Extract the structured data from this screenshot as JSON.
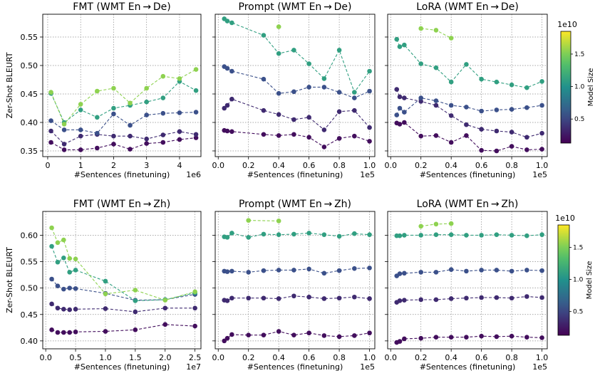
{
  "figure": {
    "colorbars": [
      {
        "label": "Model Size",
        "multiplier": "1e10",
        "ticks": [
          "0.5",
          "1.0",
          "1.5"
        ],
        "range": [
          0.13,
          1.85
        ]
      },
      {
        "label": "Model Size",
        "multiplier": "1e10",
        "ticks": [
          "0.5",
          "1.0",
          "1.5"
        ],
        "range": [
          0.13,
          1.85
        ]
      }
    ],
    "colormap_stops": [
      "#440154",
      "#3b528b",
      "#21918c",
      "#5ec962",
      "#fde725"
    ]
  },
  "chart_data": [
    {
      "type": "line",
      "title": "FMT (WMT En → De)",
      "xlabel": "#Sentences (finetuning)",
      "ylabel": "Zer-Shot BLEURT",
      "x_multiplier": "1e6",
      "xlim": [
        -0.15,
        4.65
      ],
      "ylim": [
        0.34,
        0.59
      ],
      "xticks": [
        0,
        1,
        2,
        3,
        4
      ],
      "xtick_labels": [
        "0",
        "1",
        "2",
        "3",
        "4"
      ],
      "yticks": [
        0.35,
        0.4,
        0.45,
        0.5,
        0.55
      ],
      "ytick_labels": [
        "0.35",
        "0.40",
        "0.45",
        "0.50",
        "0.55"
      ],
      "grid": true,
      "series": [
        {
          "model_size": 0.2,
          "x": [
            0.1,
            0.5,
            1.0,
            1.5,
            2.0,
            2.5,
            3.0,
            3.5,
            4.0,
            4.5
          ],
          "y": [
            0.365,
            0.352,
            0.352,
            0.355,
            0.362,
            0.353,
            0.363,
            0.365,
            0.37,
            0.373
          ]
        },
        {
          "model_size": 0.35,
          "x": [
            0.1,
            0.5,
            1.0,
            1.5,
            2.0,
            2.5,
            3.0,
            3.5,
            4.0,
            4.5
          ],
          "y": [
            0.385,
            0.362,
            0.376,
            0.379,
            0.376,
            0.376,
            0.371,
            0.378,
            0.384,
            0.379
          ]
        },
        {
          "model_size": 0.55,
          "x": [
            0.1,
            0.5,
            1.0,
            1.5,
            2.0,
            2.5,
            3.0,
            3.5,
            4.0,
            4.5
          ],
          "y": [
            0.403,
            0.387,
            0.387,
            0.381,
            0.415,
            0.395,
            0.413,
            0.416,
            0.417,
            0.418
          ]
        },
        {
          "model_size": 1.1,
          "x": [
            0.1,
            0.5,
            1.0,
            1.5,
            2.0,
            2.5,
            3.0,
            3.5,
            4.0,
            4.5
          ],
          "y": [
            0.451,
            0.4,
            0.422,
            0.409,
            0.425,
            0.43,
            0.436,
            0.443,
            0.472,
            0.456
          ]
        },
        {
          "model_size": 1.55,
          "x": [
            0.1,
            0.5,
            1.0,
            1.5,
            2.0,
            2.5,
            3.0,
            3.5,
            4.0,
            4.5
          ],
          "y": [
            0.453,
            0.397,
            0.432,
            0.455,
            0.46,
            0.434,
            0.46,
            0.481,
            0.477,
            0.493
          ]
        }
      ]
    },
    {
      "type": "line",
      "title": "Prompt (WMT En → De)",
      "xlabel": "#Sentences (finetuning)",
      "ylabel": "",
      "x_multiplier": "1e5",
      "xlim": [
        -0.02,
        1.035
      ],
      "ylim": [
        0.34,
        0.59
      ],
      "xticks": [
        0.0,
        0.2,
        0.4,
        0.6,
        0.8,
        1.0
      ],
      "xtick_labels": [
        "0.0",
        "0.2",
        "0.4",
        "0.6",
        "0.8",
        "1.0"
      ],
      "yticks": [
        0.35,
        0.4,
        0.45,
        0.5,
        0.55
      ],
      "ytick_labels": [],
      "grid": true,
      "series": [
        {
          "model_size": 0.2,
          "x": [
            0.04,
            0.06,
            0.09,
            0.3,
            0.4,
            0.5,
            0.6,
            0.7,
            0.8,
            0.9,
            1.0
          ],
          "y": [
            0.386,
            0.385,
            0.384,
            0.379,
            0.377,
            0.379,
            0.374,
            0.357,
            0.372,
            0.376,
            0.367
          ]
        },
        {
          "model_size": 0.35,
          "x": [
            0.04,
            0.06,
            0.09,
            0.3,
            0.4,
            0.5,
            0.6,
            0.7,
            0.8,
            0.9,
            1.0
          ],
          "y": [
            0.425,
            0.43,
            0.441,
            0.421,
            0.414,
            0.405,
            0.409,
            0.387,
            0.419,
            0.421,
            0.391
          ]
        },
        {
          "model_size": 0.55,
          "x": [
            0.04,
            0.06,
            0.09,
            0.3,
            0.4,
            0.5,
            0.6,
            0.7,
            0.8,
            0.9,
            1.0
          ],
          "y": [
            0.498,
            0.495,
            0.49,
            0.476,
            0.451,
            0.454,
            0.462,
            0.462,
            0.453,
            0.443,
            0.455
          ]
        },
        {
          "model_size": 1.1,
          "x": [
            0.04,
            0.06,
            0.09,
            0.3,
            0.4,
            0.5,
            0.6,
            0.7,
            0.8,
            0.9,
            1.0
          ],
          "y": [
            0.582,
            0.578,
            0.575,
            0.553,
            0.521,
            0.527,
            0.503,
            0.477,
            0.527,
            0.453,
            0.49
          ]
        },
        {
          "model_size": 1.55,
          "x": [
            0.4
          ],
          "y": [
            0.568
          ]
        }
      ]
    },
    {
      "type": "line",
      "title": "LoRA (WMT En → De)",
      "xlabel": "#Sentences (finetuning)",
      "ylabel": "",
      "x_multiplier": "1e5",
      "xlim": [
        -0.02,
        1.035
      ],
      "ylim": [
        0.34,
        0.59
      ],
      "xticks": [
        0.0,
        0.2,
        0.4,
        0.6,
        0.8,
        1.0
      ],
      "xtick_labels": [
        "0.0",
        "0.2",
        "0.4",
        "0.6",
        "0.8",
        "1.0"
      ],
      "yticks": [
        0.35,
        0.4,
        0.45,
        0.5,
        0.55
      ],
      "ytick_labels": [],
      "grid": true,
      "series": [
        {
          "model_size": 0.2,
          "x": [
            0.04,
            0.06,
            0.09,
            0.2,
            0.3,
            0.4,
            0.5,
            0.6,
            0.7,
            0.8,
            0.9,
            1.0
          ],
          "y": [
            0.399,
            0.397,
            0.4,
            0.376,
            0.377,
            0.365,
            0.377,
            0.351,
            0.35,
            0.358,
            0.352,
            0.353
          ]
        },
        {
          "model_size": 0.35,
          "x": [
            0.04,
            0.06,
            0.09,
            0.2,
            0.3,
            0.4,
            0.5,
            0.6,
            0.7,
            0.8,
            0.9,
            1.0
          ],
          "y": [
            0.458,
            0.445,
            0.443,
            0.437,
            0.43,
            0.412,
            0.396,
            0.388,
            0.385,
            0.383,
            0.374,
            0.381
          ]
        },
        {
          "model_size": 0.55,
          "x": [
            0.04,
            0.06,
            0.09,
            0.2,
            0.3,
            0.4,
            0.5,
            0.6,
            0.7,
            0.8,
            0.9,
            1.0
          ],
          "y": [
            0.413,
            0.425,
            0.418,
            0.443,
            0.438,
            0.43,
            0.427,
            0.42,
            0.422,
            0.423,
            0.426,
            0.43
          ]
        },
        {
          "model_size": 1.1,
          "x": [
            0.04,
            0.06,
            0.09,
            0.2,
            0.3,
            0.4,
            0.5,
            0.6,
            0.7,
            0.8,
            0.9,
            1.0
          ],
          "y": [
            0.546,
            0.533,
            0.536,
            0.503,
            0.496,
            0.471,
            0.502,
            0.476,
            0.471,
            0.466,
            0.461,
            0.472
          ]
        },
        {
          "model_size": 1.55,
          "x": [
            0.2,
            0.3,
            0.4
          ],
          "y": [
            0.565,
            0.562,
            0.548
          ]
        }
      ]
    },
    {
      "type": "line",
      "title": "FMT (WMT En → Zh)",
      "xlabel": "#Sentences (finetuning)",
      "ylabel": "Zer-Shot BLEURT",
      "x_multiplier": "1e7",
      "xlim": [
        -0.05,
        2.6
      ],
      "ylim": [
        0.385,
        0.645
      ],
      "xticks": [
        0.0,
        0.5,
        1.0,
        1.5,
        2.0,
        2.5
      ],
      "xtick_labels": [
        "0.0",
        "0.5",
        "1.0",
        "1.5",
        "2.0",
        "2.5"
      ],
      "yticks": [
        0.4,
        0.45,
        0.5,
        0.55,
        0.6
      ],
      "ytick_labels": [
        "0.40",
        "0.45",
        "0.50",
        "0.55",
        "0.60"
      ],
      "grid": true,
      "series": [
        {
          "model_size": 0.2,
          "x": [
            0.1,
            0.2,
            0.3,
            0.4,
            0.5,
            1.0,
            1.5,
            2.0,
            2.5
          ],
          "y": [
            0.421,
            0.416,
            0.416,
            0.416,
            0.417,
            0.418,
            0.421,
            0.431,
            0.428
          ]
        },
        {
          "model_size": 0.35,
          "x": [
            0.1,
            0.2,
            0.3,
            0.4,
            0.5,
            1.0,
            1.5,
            2.0,
            2.5
          ],
          "y": [
            0.47,
            0.462,
            0.46,
            0.459,
            0.46,
            0.461,
            0.455,
            0.462,
            0.462
          ]
        },
        {
          "model_size": 0.55,
          "x": [
            0.1,
            0.2,
            0.3,
            0.4,
            0.5,
            1.0,
            1.5,
            2.0,
            2.5
          ],
          "y": [
            0.517,
            0.504,
            0.498,
            0.5,
            0.499,
            0.49,
            0.477,
            0.478,
            0.488
          ]
        },
        {
          "model_size": 1.1,
          "x": [
            0.1,
            0.2,
            0.3,
            0.4,
            0.5,
            1.0,
            1.5,
            2.0,
            2.5
          ],
          "y": [
            0.579,
            0.549,
            0.557,
            0.53,
            0.534,
            0.513,
            0.476,
            0.478,
            0.491
          ]
        },
        {
          "model_size": 1.55,
          "x": [
            0.1,
            0.2,
            0.3,
            0.4,
            0.5,
            1.0,
            1.5,
            2.0,
            2.5
          ],
          "y": [
            0.614,
            0.586,
            0.591,
            0.556,
            0.555,
            0.489,
            0.496,
            0.477,
            0.493
          ]
        }
      ]
    },
    {
      "type": "line",
      "title": "Prompt (WMT En → Zh)",
      "xlabel": "#Sentences (finetuning)",
      "ylabel": "",
      "x_multiplier": "1e5",
      "xlim": [
        -0.02,
        1.035
      ],
      "ylim": [
        0.385,
        0.645
      ],
      "xticks": [
        0.0,
        0.2,
        0.4,
        0.6,
        0.8,
        1.0
      ],
      "xtick_labels": [
        "0.0",
        "0.2",
        "0.4",
        "0.6",
        "0.8",
        "1.0"
      ],
      "yticks": [
        0.4,
        0.45,
        0.5,
        0.55,
        0.6
      ],
      "ytick_labels": [],
      "grid": true,
      "series": [
        {
          "model_size": 0.2,
          "x": [
            0.04,
            0.06,
            0.09,
            0.2,
            0.3,
            0.4,
            0.5,
            0.6,
            0.7,
            0.8,
            0.9,
            1.0
          ],
          "y": [
            0.4,
            0.405,
            0.412,
            0.411,
            0.411,
            0.418,
            0.411,
            0.415,
            0.41,
            0.408,
            0.41,
            0.415
          ]
        },
        {
          "model_size": 0.35,
          "x": [
            0.04,
            0.06,
            0.09,
            0.2,
            0.3,
            0.4,
            0.5,
            0.6,
            0.7,
            0.8,
            0.9,
            1.0
          ],
          "y": [
            0.477,
            0.476,
            0.481,
            0.481,
            0.481,
            0.48,
            0.485,
            0.483,
            0.48,
            0.481,
            0.483,
            0.48
          ]
        },
        {
          "model_size": 0.55,
          "x": [
            0.04,
            0.06,
            0.09,
            0.2,
            0.3,
            0.4,
            0.5,
            0.6,
            0.7,
            0.8,
            0.9,
            1.0
          ],
          "y": [
            0.532,
            0.531,
            0.532,
            0.53,
            0.533,
            0.534,
            0.534,
            0.536,
            0.528,
            0.533,
            0.537,
            0.538
          ]
        },
        {
          "model_size": 1.1,
          "x": [
            0.04,
            0.06,
            0.09,
            0.2,
            0.3,
            0.4,
            0.5,
            0.6,
            0.7,
            0.8,
            0.9,
            1.0
          ],
          "y": [
            0.597,
            0.596,
            0.604,
            0.596,
            0.602,
            0.601,
            0.602,
            0.604,
            0.601,
            0.598,
            0.603,
            0.601
          ]
        },
        {
          "model_size": 1.55,
          "x": [
            0.2,
            0.4
          ],
          "y": [
            0.628,
            0.627
          ]
        }
      ]
    },
    {
      "type": "line",
      "title": "LoRA (WMT En → Zh)",
      "xlabel": "#Sentences (finetuning)",
      "ylabel": "",
      "x_multiplier": "1e5",
      "xlim": [
        -0.02,
        1.035
      ],
      "ylim": [
        0.385,
        0.645
      ],
      "xticks": [
        0.0,
        0.2,
        0.4,
        0.6,
        0.8,
        1.0
      ],
      "xtick_labels": [
        "0.0",
        "0.2",
        "0.4",
        "0.6",
        "0.8",
        "1.0"
      ],
      "yticks": [
        0.4,
        0.45,
        0.5,
        0.55,
        0.6
      ],
      "ytick_labels": [],
      "grid": true,
      "series": [
        {
          "model_size": 0.2,
          "x": [
            0.04,
            0.06,
            0.09,
            0.2,
            0.3,
            0.4,
            0.5,
            0.6,
            0.7,
            0.8,
            0.9,
            1.0
          ],
          "y": [
            0.397,
            0.399,
            0.404,
            0.405,
            0.407,
            0.407,
            0.407,
            0.409,
            0.408,
            0.409,
            0.407,
            0.406
          ]
        },
        {
          "model_size": 0.35,
          "x": [
            0.04,
            0.06,
            0.09,
            0.2,
            0.3,
            0.4,
            0.5,
            0.6,
            0.7,
            0.8,
            0.9,
            1.0
          ],
          "y": [
            0.473,
            0.476,
            0.477,
            0.478,
            0.478,
            0.48,
            0.481,
            0.482,
            0.482,
            0.481,
            0.484,
            0.482
          ]
        },
        {
          "model_size": 0.55,
          "x": [
            0.04,
            0.06,
            0.09,
            0.2,
            0.3,
            0.4,
            0.5,
            0.6,
            0.7,
            0.8,
            0.9,
            1.0
          ],
          "y": [
            0.523,
            0.527,
            0.528,
            0.53,
            0.53,
            0.535,
            0.532,
            0.534,
            0.534,
            0.532,
            0.534,
            0.533
          ]
        },
        {
          "model_size": 1.1,
          "x": [
            0.04,
            0.06,
            0.09,
            0.2,
            0.3,
            0.4,
            0.5,
            0.6,
            0.7,
            0.8,
            0.9,
            1.0
          ],
          "y": [
            0.599,
            0.599,
            0.6,
            0.6,
            0.601,
            0.601,
            0.6,
            0.6,
            0.601,
            0.6,
            0.599,
            0.601
          ]
        },
        {
          "model_size": 1.55,
          "x": [
            0.2,
            0.3,
            0.4
          ],
          "y": [
            0.617,
            0.621,
            0.622
          ]
        }
      ]
    }
  ]
}
